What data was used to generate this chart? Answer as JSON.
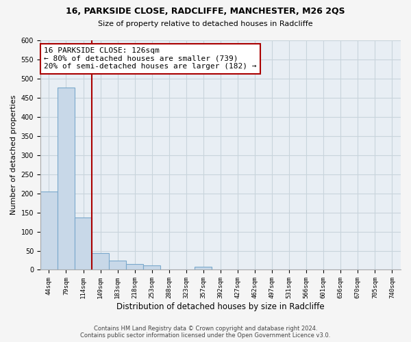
{
  "title": "16, PARKSIDE CLOSE, RADCLIFFE, MANCHESTER, M26 2QS",
  "subtitle": "Size of property relative to detached houses in Radcliffe",
  "xlabel": "Distribution of detached houses by size in Radcliffe",
  "ylabel": "Number of detached properties",
  "bar_labels": [
    "44sqm",
    "79sqm",
    "114sqm",
    "149sqm",
    "183sqm",
    "218sqm",
    "253sqm",
    "288sqm",
    "323sqm",
    "357sqm",
    "392sqm",
    "427sqm",
    "462sqm",
    "497sqm",
    "531sqm",
    "566sqm",
    "601sqm",
    "636sqm",
    "670sqm",
    "705sqm",
    "740sqm"
  ],
  "bar_values": [
    204,
    476,
    137,
    43,
    24,
    15,
    12,
    0,
    0,
    8,
    0,
    0,
    0,
    0,
    0,
    0,
    0,
    0,
    0,
    0,
    0
  ],
  "bar_color": "#c8d8e8",
  "bar_edge_color": "#7aa8cc",
  "vline_color": "#aa0000",
  "annotation_title": "16 PARKSIDE CLOSE: 126sqm",
  "annotation_line1": "← 80% of detached houses are smaller (739)",
  "annotation_line2": "20% of semi-detached houses are larger (182) →",
  "annotation_box_color": "#ffffff",
  "annotation_box_edge": "#aa0000",
  "ylim": [
    0,
    600
  ],
  "yticks": [
    0,
    50,
    100,
    150,
    200,
    250,
    300,
    350,
    400,
    450,
    500,
    550,
    600
  ],
  "footer_line1": "Contains HM Land Registry data © Crown copyright and database right 2024.",
  "footer_line2": "Contains public sector information licensed under the Open Government Licence v3.0.",
  "background_color": "#f5f5f5",
  "plot_bg_color": "#e8eef4",
  "grid_color": "#c8d4dc"
}
